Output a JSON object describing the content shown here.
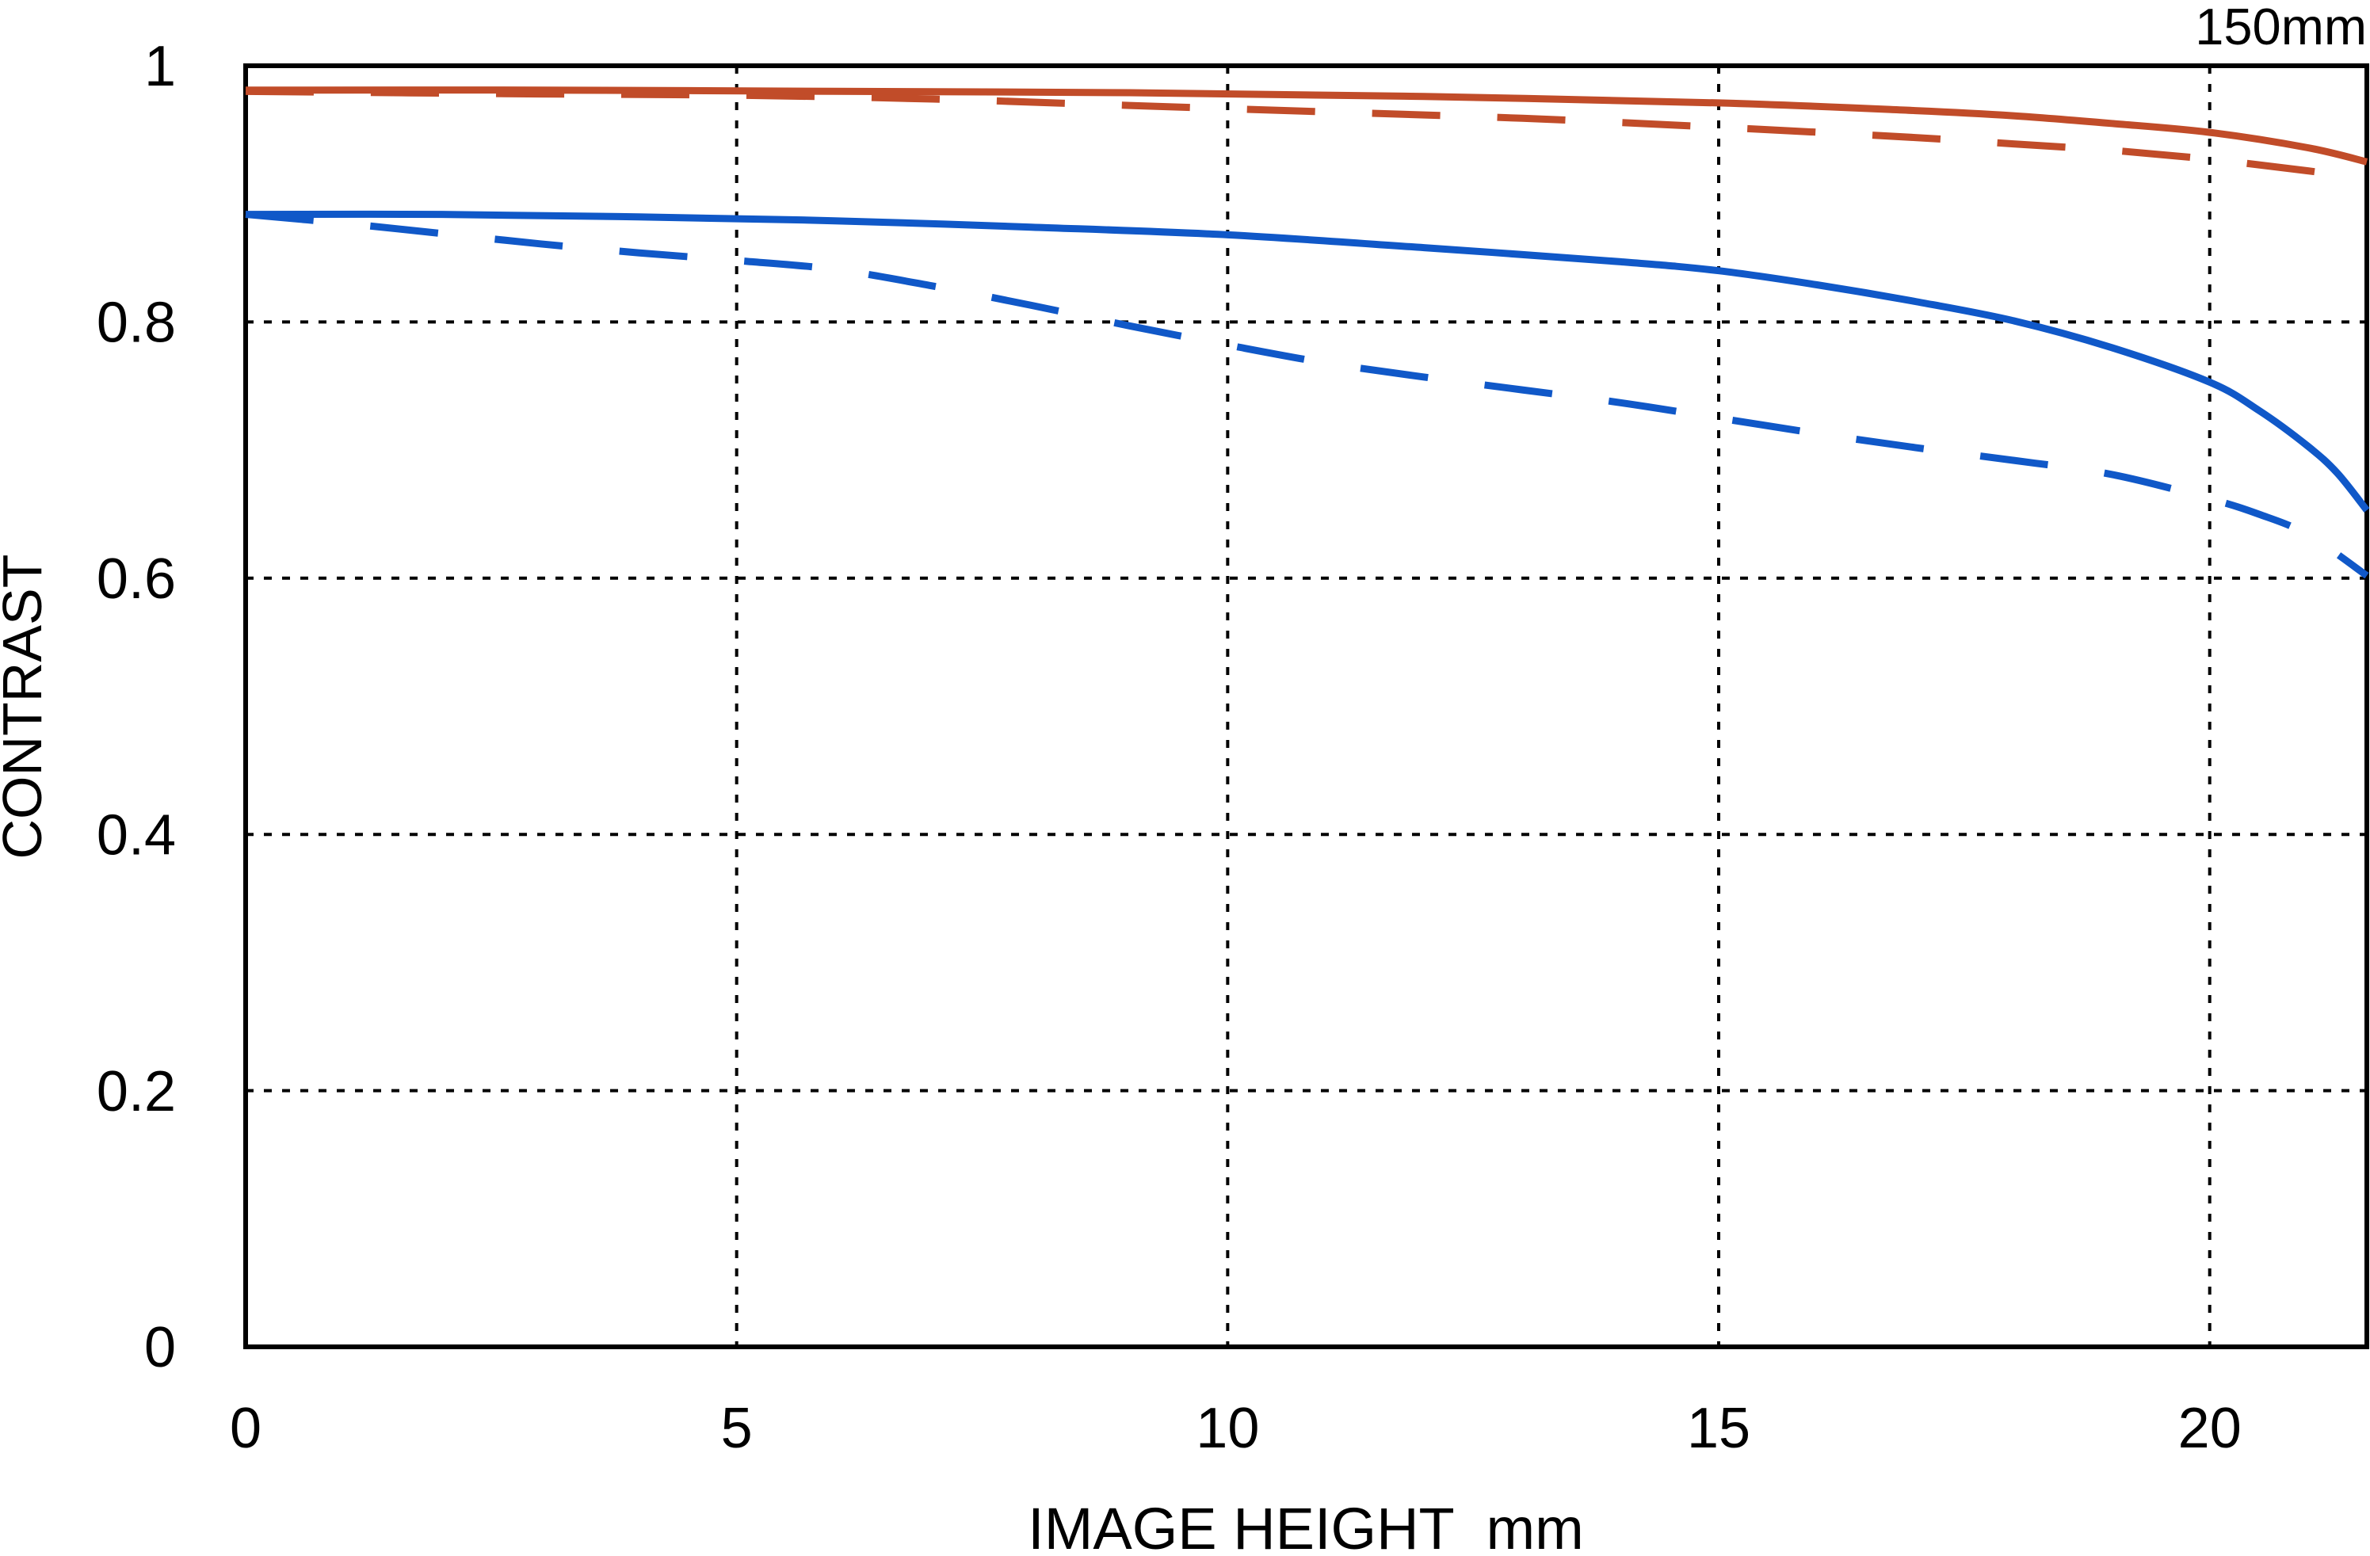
{
  "chart_data": {
    "type": "line",
    "title": "150mm",
    "xlabel": "IMAGE HEIGHT  mm",
    "ylabel": "CONTRAST",
    "xlim": [
      0,
      21.6
    ],
    "ylim": [
      0,
      1
    ],
    "xticks": [
      0,
      5,
      10,
      15,
      20
    ],
    "yticks": [
      0,
      0.2,
      0.4,
      0.6,
      0.8,
      1
    ],
    "grid": true,
    "legend_position": "none",
    "background_color": "#ffffff",
    "axis_color": "#000000",
    "series": [
      {
        "name": "red-solid",
        "style": "solid",
        "color": "#c14c29",
        "points": [
          [
            0,
            0.981
          ],
          [
            3,
            0.981
          ],
          [
            6,
            0.98
          ],
          [
            9,
            0.979
          ],
          [
            12,
            0.976
          ],
          [
            15,
            0.971
          ],
          [
            17,
            0.965
          ],
          [
            18,
            0.961
          ],
          [
            19,
            0.955
          ],
          [
            20,
            0.948
          ],
          [
            21,
            0.936
          ],
          [
            21.6,
            0.925
          ]
        ]
      },
      {
        "name": "red-dashed",
        "style": "dashed",
        "color": "#c14c29",
        "points": [
          [
            0,
            0.98
          ],
          [
            3,
            0.978
          ],
          [
            5,
            0.977
          ],
          [
            7,
            0.974
          ],
          [
            9,
            0.969
          ],
          [
            11,
            0.964
          ],
          [
            13,
            0.959
          ],
          [
            15,
            0.952
          ],
          [
            17,
            0.944
          ],
          [
            18,
            0.939
          ],
          [
            19,
            0.934
          ],
          [
            20,
            0.927
          ],
          [
            21,
            0.918
          ],
          [
            21.6,
            0.911
          ]
        ]
      },
      {
        "name": "blue-solid",
        "style": "solid",
        "color": "#1058c8",
        "points": [
          [
            0,
            0.884
          ],
          [
            2,
            0.884
          ],
          [
            4,
            0.882
          ],
          [
            6,
            0.879
          ],
          [
            8,
            0.874
          ],
          [
            10,
            0.868
          ],
          [
            12,
            0.858
          ],
          [
            14,
            0.847
          ],
          [
            15,
            0.84
          ],
          [
            16,
            0.829
          ],
          [
            17,
            0.816
          ],
          [
            18,
            0.801
          ],
          [
            19,
            0.78
          ],
          [
            20,
            0.753
          ],
          [
            20.5,
            0.731
          ],
          [
            21,
            0.703
          ],
          [
            21.3,
            0.682
          ],
          [
            21.6,
            0.653
          ]
        ]
      },
      {
        "name": "blue-dashed",
        "style": "dashed",
        "color": "#1058c8",
        "points": [
          [
            0,
            0.884
          ],
          [
            1,
            0.877
          ],
          [
            2,
            0.869
          ],
          [
            3,
            0.861
          ],
          [
            4,
            0.854
          ],
          [
            5,
            0.848
          ],
          [
            6,
            0.841
          ],
          [
            7,
            0.828
          ],
          [
            8,
            0.813
          ],
          [
            9,
            0.797
          ],
          [
            10,
            0.782
          ],
          [
            11,
            0.768
          ],
          [
            12,
            0.757
          ],
          [
            13,
            0.747
          ],
          [
            14,
            0.737
          ],
          [
            15,
            0.725
          ],
          [
            16,
            0.713
          ],
          [
            17,
            0.702
          ],
          [
            18,
            0.692
          ],
          [
            19,
            0.681
          ],
          [
            20,
            0.662
          ],
          [
            20.5,
            0.65
          ],
          [
            21,
            0.634
          ],
          [
            21.6,
            0.602
          ]
        ]
      }
    ]
  }
}
